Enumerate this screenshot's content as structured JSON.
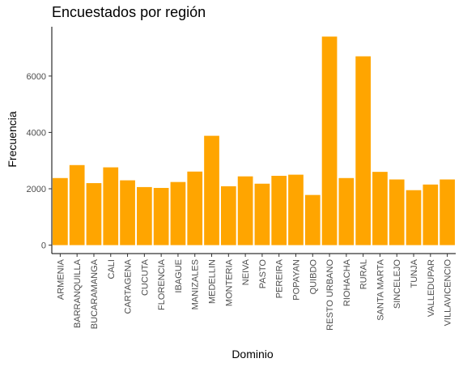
{
  "chart_data": {
    "type": "bar",
    "title": "Encuestados por región",
    "xlabel": "Dominio",
    "ylabel": "Frecuencia",
    "categories": [
      "ARMENIA",
      "BARRANQUILLA",
      "BUCARAMANGA",
      "CALI",
      "CARTAGENA",
      "CUCUTA",
      "FLORENCIA",
      "IBAGUE",
      "MANIZALES",
      "MEDELLIN",
      "MONTERIA",
      "NEIVA",
      "PASTO",
      "PEREIRA",
      "POPAYAN",
      "QUIBDO",
      "RESTO URBANO",
      "RIOHACHA",
      "RURAL",
      "SANTA MARTA",
      "SINCELEJO",
      "TUNJA",
      "VALLEDUPAR",
      "VILLAVICENCIO"
    ],
    "values": [
      2380,
      2840,
      2200,
      2760,
      2300,
      2060,
      2030,
      2240,
      2610,
      3880,
      2090,
      2440,
      2180,
      2460,
      2500,
      1780,
      7400,
      2380,
      6700,
      2600,
      2330,
      1950,
      2150,
      2330
    ],
    "yticks": [
      0,
      2000,
      4000,
      6000
    ],
    "ylim": [
      -300,
      7750
    ],
    "bar_color": "#FFA500",
    "grid": false,
    "legend": "none"
  }
}
